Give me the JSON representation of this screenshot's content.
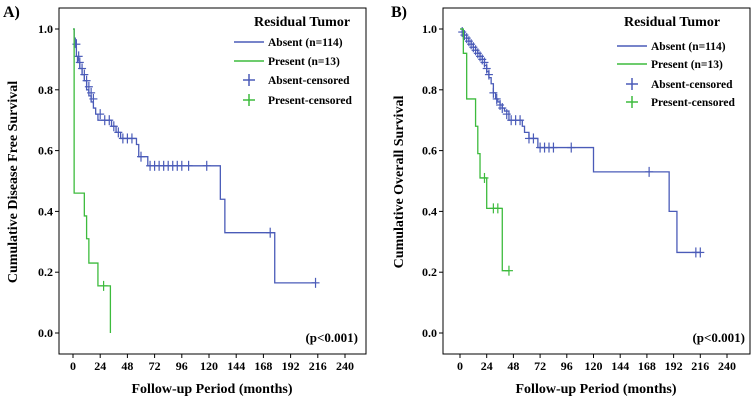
{
  "chart_data": [
    {
      "type": "line",
      "panel": "A)",
      "xlabel": "Follow-up Period (months)",
      "ylabel": "Cumulative Disease Free Survival",
      "xlim": [
        0,
        240
      ],
      "ylim": [
        0,
        1.0
      ],
      "x_ticks": [
        0,
        24,
        48,
        72,
        96,
        120,
        144,
        168,
        192,
        216,
        240
      ],
      "y_ticks": [
        "0.0",
        "0.2",
        "0.4",
        "0.6",
        "0.8",
        "1.0"
      ],
      "legend_title": "Residual Tumor",
      "legend_position": "top-right",
      "legend": [
        "Absent (n=114)",
        "Present (n=13)",
        "Absent-censored",
        "Present-censored"
      ],
      "annotation": "(p<0.001)",
      "series": [
        {
          "name": "Absent (n=114)",
          "color": "#4a5bb8",
          "steps": [
            [
              0,
              1.0
            ],
            [
              1,
              0.97
            ],
            [
              2,
              0.94
            ],
            [
              3,
              0.91
            ],
            [
              4,
              0.89
            ],
            [
              6,
              0.87
            ],
            [
              8,
              0.85
            ],
            [
              10,
              0.83
            ],
            [
              12,
              0.8
            ],
            [
              14,
              0.78
            ],
            [
              16,
              0.76
            ],
            [
              18,
              0.74
            ],
            [
              20,
              0.72
            ],
            [
              22,
              0.7
            ],
            [
              34,
              0.68
            ],
            [
              38,
              0.66
            ],
            [
              42,
              0.64
            ],
            [
              56,
              0.62
            ],
            [
              58,
              0.58
            ],
            [
              66,
              0.55
            ],
            [
              130,
              0.44
            ],
            [
              134,
              0.33
            ],
            [
              178,
              0.165
            ],
            [
              214,
              0.165
            ]
          ],
          "censored": [
            [
              3,
              0.95
            ],
            [
              5,
              0.91
            ],
            [
              6,
              0.89
            ],
            [
              8,
              0.87
            ],
            [
              10,
              0.85
            ],
            [
              12,
              0.83
            ],
            [
              14,
              0.81
            ],
            [
              16,
              0.79
            ],
            [
              18,
              0.77
            ],
            [
              24,
              0.72
            ],
            [
              28,
              0.7
            ],
            [
              32,
              0.7
            ],
            [
              36,
              0.68
            ],
            [
              40,
              0.66
            ],
            [
              44,
              0.64
            ],
            [
              48,
              0.64
            ],
            [
              52,
              0.64
            ],
            [
              60,
              0.58
            ],
            [
              68,
              0.55
            ],
            [
              72,
              0.55
            ],
            [
              76,
              0.55
            ],
            [
              80,
              0.55
            ],
            [
              84,
              0.55
            ],
            [
              88,
              0.55
            ],
            [
              92,
              0.55
            ],
            [
              96,
              0.55
            ],
            [
              102,
              0.55
            ],
            [
              118,
              0.55
            ],
            [
              174,
              0.33
            ],
            [
              214,
              0.165
            ]
          ]
        },
        {
          "name": "Present (n=13)",
          "color": "#3dbb3d",
          "steps": [
            [
              0,
              1.0
            ],
            [
              1,
              0.46
            ],
            [
              10,
              0.385
            ],
            [
              12,
              0.31
            ],
            [
              14,
              0.23
            ],
            [
              22,
              0.155
            ],
            [
              33,
              0.0
            ],
            [
              33,
              0.0
            ]
          ],
          "censored": [
            [
              27,
              0.155
            ]
          ]
        }
      ]
    },
    {
      "type": "line",
      "panel": "B)",
      "xlabel": "Follow-up Period (months)",
      "ylabel": "Cumulative Overall Survival",
      "xlim": [
        0,
        240
      ],
      "ylim": [
        0,
        1.0
      ],
      "x_ticks": [
        0,
        24,
        48,
        72,
        96,
        120,
        144,
        168,
        192,
        216,
        240
      ],
      "y_ticks": [
        "0.0",
        "0.2",
        "0.4",
        "0.6",
        "0.8",
        "1.0"
      ],
      "legend_title": "Residual Tumor",
      "legend_position": "top-right",
      "legend": [
        "Absent (n=114)",
        "Present (n=13)",
        "Absent-censored",
        "Present-censored"
      ],
      "annotation": "(p<0.001)",
      "series": [
        {
          "name": "Absent (n=114)",
          "color": "#4a5bb8",
          "steps": [
            [
              0,
              1.0
            ],
            [
              2,
              0.99
            ],
            [
              4,
              0.98
            ],
            [
              6,
              0.97
            ],
            [
              8,
              0.96
            ],
            [
              10,
              0.95
            ],
            [
              12,
              0.94
            ],
            [
              14,
              0.93
            ],
            [
              16,
              0.92
            ],
            [
              18,
              0.91
            ],
            [
              20,
              0.9
            ],
            [
              22,
              0.88
            ],
            [
              24,
              0.86
            ],
            [
              26,
              0.84
            ],
            [
              28,
              0.82
            ],
            [
              30,
              0.79
            ],
            [
              32,
              0.77
            ],
            [
              34,
              0.76
            ],
            [
              36,
              0.75
            ],
            [
              38,
              0.74
            ],
            [
              40,
              0.73
            ],
            [
              44,
              0.7
            ],
            [
              56,
              0.68
            ],
            [
              58,
              0.66
            ],
            [
              62,
              0.64
            ],
            [
              70,
              0.61
            ],
            [
              120,
              0.53
            ],
            [
              188,
              0.4
            ],
            [
              195,
              0.265
            ],
            [
              216,
              0.265
            ]
          ],
          "censored": [
            [
              2,
              0.99
            ],
            [
              4,
              0.98
            ],
            [
              6,
              0.97
            ],
            [
              8,
              0.96
            ],
            [
              10,
              0.95
            ],
            [
              12,
              0.94
            ],
            [
              14,
              0.93
            ],
            [
              16,
              0.92
            ],
            [
              18,
              0.91
            ],
            [
              20,
              0.9
            ],
            [
              22,
              0.89
            ],
            [
              24,
              0.87
            ],
            [
              26,
              0.85
            ],
            [
              30,
              0.79
            ],
            [
              33,
              0.77
            ],
            [
              36,
              0.75
            ],
            [
              38,
              0.74
            ],
            [
              42,
              0.72
            ],
            [
              46,
              0.7
            ],
            [
              50,
              0.7
            ],
            [
              54,
              0.7
            ],
            [
              62,
              0.64
            ],
            [
              66,
              0.64
            ],
            [
              72,
              0.61
            ],
            [
              76,
              0.61
            ],
            [
              80,
              0.61
            ],
            [
              84,
              0.61
            ],
            [
              100,
              0.61
            ],
            [
              170,
              0.53
            ],
            [
              212,
              0.265
            ],
            [
              216,
              0.265
            ]
          ]
        },
        {
          "name": "Present (n=13)",
          "color": "#3dbb3d",
          "steps": [
            [
              0,
              1.0
            ],
            [
              3,
              0.92
            ],
            [
              6,
              0.77
            ],
            [
              14,
              0.68
            ],
            [
              16,
              0.59
            ],
            [
              18,
              0.51
            ],
            [
              24,
              0.41
            ],
            [
              38,
              0.205
            ],
            [
              44,
              0.205
            ]
          ],
          "censored": [
            [
              22,
              0.51
            ],
            [
              30,
              0.41
            ],
            [
              34,
              0.41
            ],
            [
              44,
              0.205
            ]
          ]
        }
      ]
    }
  ]
}
